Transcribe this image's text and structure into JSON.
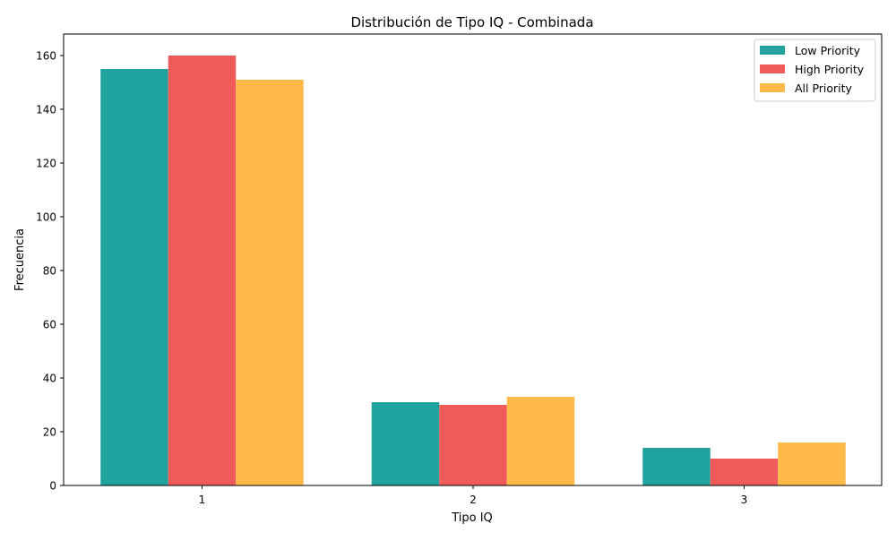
{
  "chart_data": {
    "type": "bar",
    "title": "Distribución de Tipo IQ - Combinada",
    "xlabel": "Tipo IQ",
    "ylabel": "Frecuencia",
    "categories": [
      "1",
      "2",
      "3"
    ],
    "ylim": [
      0,
      168
    ],
    "yticks": [
      0,
      20,
      40,
      60,
      80,
      100,
      120,
      140,
      160
    ],
    "grid": false,
    "legend_position": "top-right",
    "series": [
      {
        "name": "Low Priority",
        "color": "#20A39E",
        "values": [
          155,
          31,
          14
        ]
      },
      {
        "name": "High Priority",
        "color": "#EF5B5B",
        "values": [
          160,
          30,
          10
        ]
      },
      {
        "name": "All Priority",
        "color": "#FFBA49",
        "values": [
          151,
          33,
          16
        ]
      }
    ]
  }
}
